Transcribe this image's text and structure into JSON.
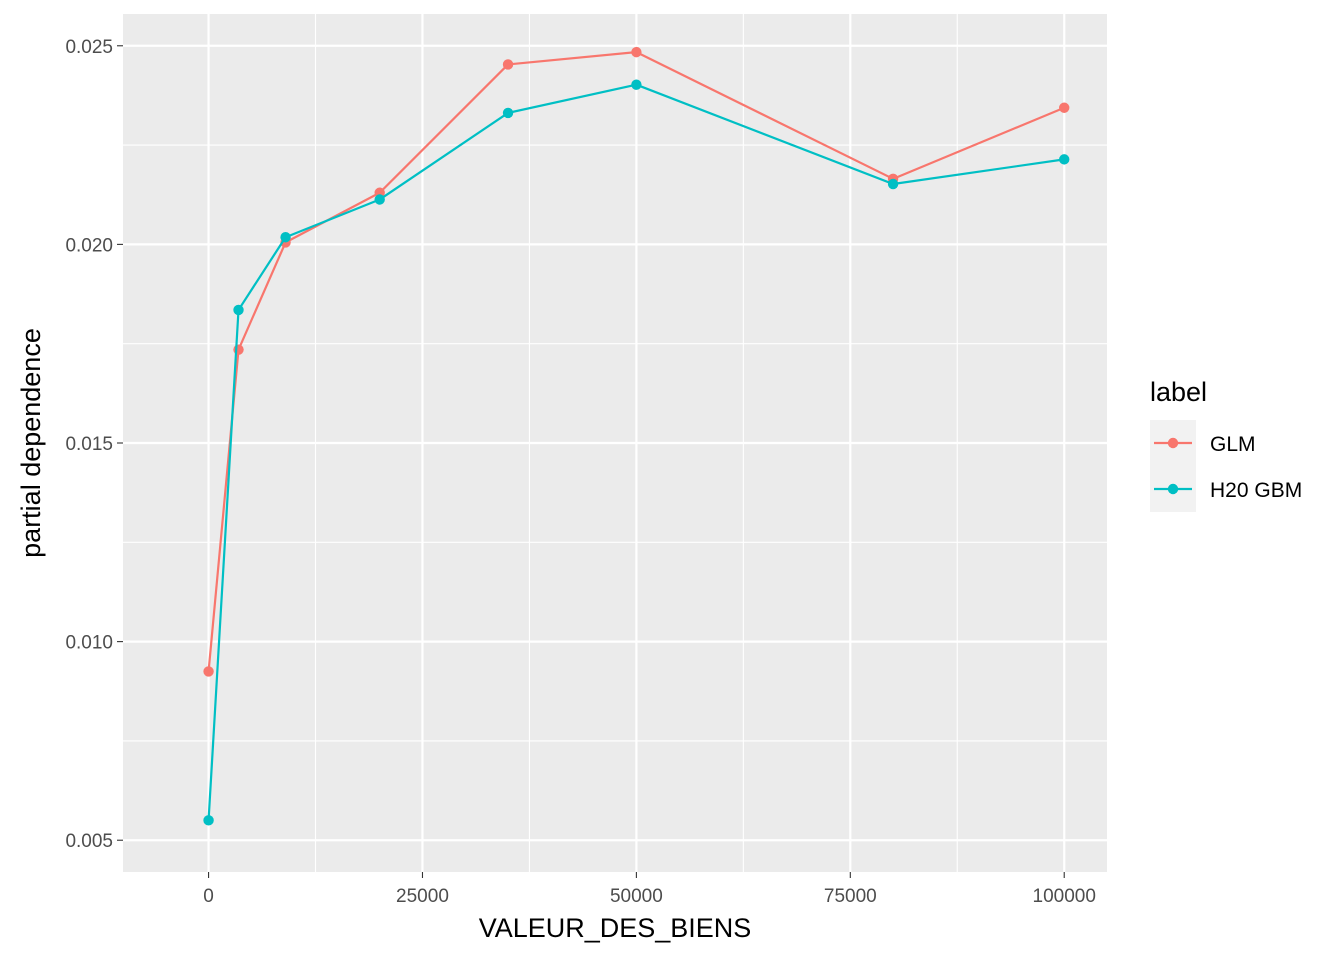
{
  "chart_data": {
    "type": "line",
    "xlabel": "VALEUR_DES_BIENS",
    "ylabel": "partial dependence",
    "xlim": [
      -10000,
      105000
    ],
    "ylim": [
      0.0042,
      0.0258
    ],
    "x_ticks": [
      0,
      25000,
      50000,
      75000,
      100000
    ],
    "x_tick_labels": [
      "0",
      "25000",
      "50000",
      "75000",
      "100000"
    ],
    "y_ticks": [
      0.005,
      0.01,
      0.015,
      0.02,
      0.025
    ],
    "y_tick_labels": [
      "0.005",
      "0.010",
      "0.015",
      "0.020",
      "0.025"
    ],
    "grid": true,
    "legend": {
      "title": "label",
      "position": "right"
    },
    "series": [
      {
        "name": "GLM",
        "color": "#F8766D",
        "x": [
          0,
          3500,
          9000,
          20000,
          35000,
          50000,
          80000,
          100000
        ],
        "y": [
          0.00925,
          0.01735,
          0.02005,
          0.0213,
          0.02453,
          0.02484,
          0.02165,
          0.02344
        ]
      },
      {
        "name": "H20 GBM",
        "color": "#00BFC4",
        "x": [
          0,
          3500,
          9000,
          20000,
          35000,
          50000,
          80000,
          100000
        ],
        "y": [
          0.0055,
          0.01835,
          0.02018,
          0.02113,
          0.02331,
          0.02402,
          0.02152,
          0.02214
        ]
      }
    ]
  }
}
